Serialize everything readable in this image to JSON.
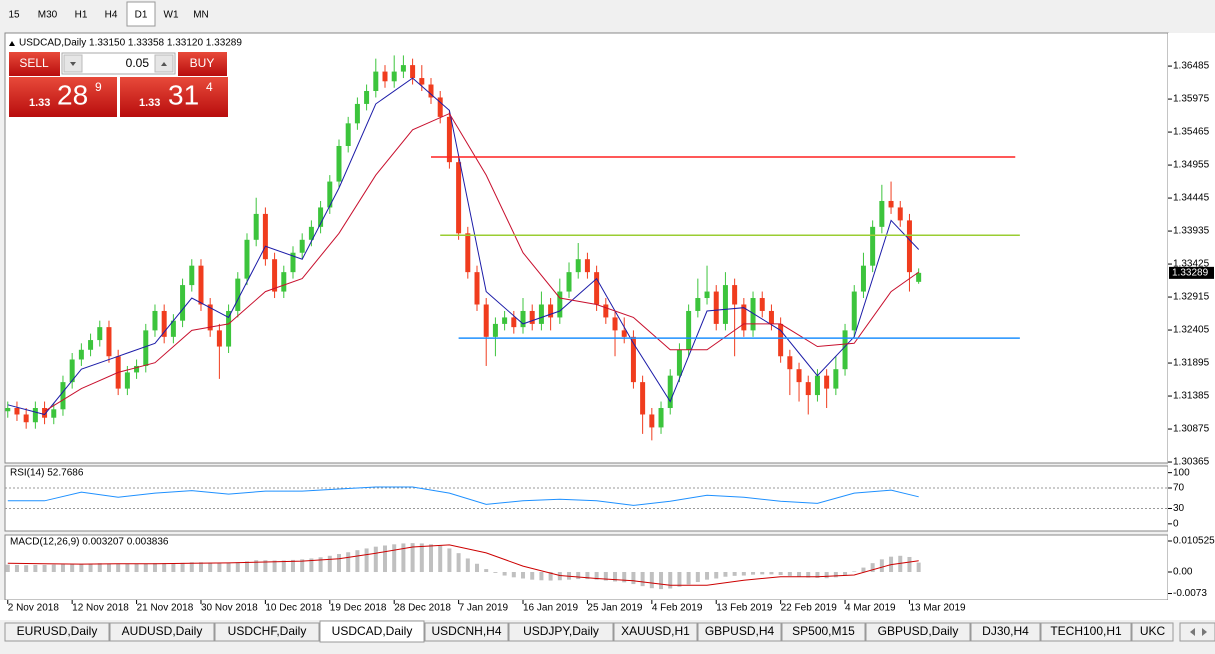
{
  "toolbar": [
    "15",
    "M30",
    "H1",
    "H4",
    "D1",
    "W1",
    "MN"
  ],
  "active_timeframe": 4,
  "trade_panel": {
    "sell": "SELL",
    "lots": "0.05",
    "buy": "BUY",
    "bid": [
      "1.33",
      "28",
      "9"
    ],
    "ask": [
      "1.33",
      "31",
      "4"
    ]
  },
  "tabs": [
    "EURUSD,Daily",
    "AUDUSD,Daily",
    "USDCHF,Daily",
    "USDCAD,Daily",
    "USDCNH,H4",
    "USDJPY,Daily",
    "XAUUSD,H1",
    "GBPUSD,H4",
    "SP500,M15",
    "GBPUSD,Daily",
    "DJ30,H4",
    "TECH100,H1",
    "UKC"
  ],
  "active_tab": 3,
  "chart_data": [
    {
      "type": "candlestick",
      "title": "USDCAD,Daily  1.33150 1.33358 1.33120 1.33289",
      "bull_color": "#3cc43c",
      "bear_color": "#f03c1e",
      "xlim": [
        -0.3,
        126.1
      ],
      "ylim": [
        1.3035,
        1.3695
      ],
      "yticks": [
        1.36485,
        1.35975,
        1.35465,
        1.34955,
        1.34445,
        1.33935,
        1.33425,
        1.32915,
        1.32405,
        1.31895,
        1.31385,
        1.30875,
        1.30365
      ],
      "xticks": [
        {
          "value": 0,
          "label": "2 Nov 2018"
        },
        {
          "value": 7,
          "label": "12 Nov 2018"
        },
        {
          "value": 14,
          "label": "21 Nov 2018"
        },
        {
          "value": 21,
          "label": "30 Nov 2018"
        },
        {
          "value": 28,
          "label": "10 Dec 2018"
        },
        {
          "value": 35,
          "label": "19 Dec 2018"
        },
        {
          "value": 42,
          "label": "28 Dec 2018"
        },
        {
          "value": 49,
          "label": "7 Jan 2019"
        },
        {
          "value": 56,
          "label": "16 Jan 2019"
        },
        {
          "value": 63,
          "label": "25 Jan 2019"
        },
        {
          "value": 70,
          "label": "4 Feb 2019"
        },
        {
          "value": 77,
          "label": "13 Feb 2019"
        },
        {
          "value": 84,
          "label": "22 Feb 2019"
        },
        {
          "value": 91,
          "label": "4 Mar 2019"
        },
        {
          "value": 98,
          "label": "13 Mar 2019"
        }
      ],
      "open": [
        1.3115,
        1.312,
        1.311,
        1.3098,
        1.312,
        1.3105,
        1.3118,
        1.316,
        1.3195,
        1.321,
        1.3225,
        1.3245,
        1.32,
        1.315,
        1.3175,
        1.3185,
        1.324,
        1.327,
        1.323,
        1.3255,
        1.331,
        1.334,
        1.328,
        1.324,
        1.3215,
        1.327,
        1.332,
        1.338,
        1.342,
        1.335,
        1.33,
        1.333,
        1.336,
        1.338,
        1.34,
        1.343,
        1.347,
        1.3525,
        1.356,
        1.359,
        1.361,
        1.364,
        1.3625,
        1.364,
        1.365,
        1.363,
        1.362,
        1.36,
        1.357,
        1.35,
        1.339,
        1.333,
        1.328,
        1.323,
        1.325,
        1.326,
        1.3245,
        1.327,
        1.325,
        1.328,
        1.326,
        1.33,
        1.333,
        1.335,
        1.333,
        1.328,
        1.326,
        1.324,
        1.323,
        1.316,
        1.311,
        1.309,
        1.312,
        1.317,
        1.321,
        1.327,
        1.329,
        1.33,
        1.325,
        1.331,
        1.328,
        1.324,
        1.329,
        1.327,
        1.325,
        1.32,
        1.318,
        1.316,
        1.314,
        1.317,
        1.315,
        1.318,
        1.324,
        1.33,
        1.334,
        1.34,
        1.344,
        1.343,
        1.341,
        1.3315
      ],
      "high": [
        1.313,
        1.313,
        1.312,
        1.313,
        1.313,
        1.3128,
        1.317,
        1.3205,
        1.322,
        1.3235,
        1.3255,
        1.3255,
        1.321,
        1.3185,
        1.3195,
        1.325,
        1.328,
        1.328,
        1.3265,
        1.332,
        1.335,
        1.335,
        1.329,
        1.325,
        1.328,
        1.333,
        1.339,
        1.3445,
        1.343,
        1.336,
        1.334,
        1.337,
        1.339,
        1.341,
        1.344,
        1.348,
        1.3535,
        1.357,
        1.36,
        1.362,
        1.366,
        1.365,
        1.3665,
        1.3665,
        1.366,
        1.365,
        1.363,
        1.361,
        1.358,
        1.351,
        1.34,
        1.334,
        1.329,
        1.326,
        1.327,
        1.327,
        1.329,
        1.328,
        1.33,
        1.329,
        1.332,
        1.3345,
        1.3375,
        1.336,
        1.334,
        1.329,
        1.327,
        1.326,
        1.324,
        1.317,
        1.312,
        1.313,
        1.318,
        1.322,
        1.328,
        1.332,
        1.334,
        1.331,
        1.333,
        1.332,
        1.329,
        1.33,
        1.33,
        1.328,
        1.326,
        1.321,
        1.319,
        1.317,
        1.318,
        1.318,
        1.32,
        1.325,
        1.331,
        1.336,
        1.341,
        1.3465,
        1.347,
        1.344,
        1.342,
        1.33358
      ],
      "low": [
        1.3105,
        1.31,
        1.3088,
        1.3088,
        1.3095,
        1.3095,
        1.3108,
        1.315,
        1.3185,
        1.32,
        1.3215,
        1.319,
        1.314,
        1.314,
        1.3165,
        1.3175,
        1.323,
        1.322,
        1.322,
        1.3245,
        1.33,
        1.327,
        1.323,
        1.3165,
        1.3205,
        1.326,
        1.331,
        1.337,
        1.334,
        1.329,
        1.329,
        1.332,
        1.335,
        1.337,
        1.339,
        1.342,
        1.346,
        1.3515,
        1.355,
        1.358,
        1.36,
        1.3615,
        1.3615,
        1.363,
        1.362,
        1.361,
        1.359,
        1.356,
        1.349,
        1.338,
        1.332,
        1.327,
        1.3185,
        1.32,
        1.324,
        1.3235,
        1.3235,
        1.324,
        1.324,
        1.324,
        1.325,
        1.329,
        1.332,
        1.332,
        1.327,
        1.325,
        1.32,
        1.322,
        1.315,
        1.308,
        1.307,
        1.308,
        1.311,
        1.316,
        1.32,
        1.326,
        1.328,
        1.324,
        1.324,
        1.32,
        1.323,
        1.323,
        1.326,
        1.324,
        1.319,
        1.314,
        1.313,
        1.311,
        1.313,
        1.312,
        1.314,
        1.317,
        1.323,
        1.329,
        1.333,
        1.339,
        1.342,
        1.34,
        1.33,
        1.3312
      ],
      "close": [
        1.312,
        1.311,
        1.3098,
        1.312,
        1.3105,
        1.3118,
        1.316,
        1.3195,
        1.321,
        1.3225,
        1.3245,
        1.32,
        1.315,
        1.3175,
        1.3185,
        1.324,
        1.327,
        1.323,
        1.3255,
        1.331,
        1.334,
        1.328,
        1.324,
        1.3215,
        1.327,
        1.332,
        1.338,
        1.342,
        1.335,
        1.33,
        1.333,
        1.336,
        1.338,
        1.34,
        1.343,
        1.347,
        1.3525,
        1.356,
        1.359,
        1.361,
        1.364,
        1.3625,
        1.364,
        1.365,
        1.363,
        1.362,
        1.36,
        1.357,
        1.35,
        1.339,
        1.333,
        1.328,
        1.323,
        1.325,
        1.326,
        1.3245,
        1.327,
        1.325,
        1.328,
        1.326,
        1.33,
        1.333,
        1.335,
        1.333,
        1.328,
        1.326,
        1.324,
        1.323,
        1.316,
        1.311,
        1.309,
        1.312,
        1.317,
        1.321,
        1.327,
        1.329,
        1.33,
        1.325,
        1.331,
        1.328,
        1.324,
        1.329,
        1.327,
        1.325,
        1.32,
        1.318,
        1.316,
        1.314,
        1.317,
        1.315,
        1.318,
        1.324,
        1.33,
        1.334,
        1.34,
        1.344,
        1.343,
        1.341,
        1.333,
        1.33289
      ],
      "overlays": [
        {
          "color": "#1c1ca8",
          "x": [
            0,
            4,
            8,
            12,
            16,
            20,
            24,
            28,
            32,
            36,
            40,
            44,
            48,
            52,
            56,
            60,
            64,
            68,
            72,
            76,
            80,
            84,
            88,
            92,
            96,
            99
          ],
          "values": [
            1.3125,
            1.311,
            1.318,
            1.32,
            1.322,
            1.329,
            1.326,
            1.337,
            1.335,
            1.346,
            1.359,
            1.363,
            1.358,
            1.33,
            1.325,
            1.327,
            1.332,
            1.322,
            1.313,
            1.327,
            1.3275,
            1.324,
            1.317,
            1.323,
            1.341,
            1.3365
          ]
        },
        {
          "color": "#c8102e",
          "x": [
            4,
            8,
            12,
            16,
            20,
            24,
            28,
            32,
            36,
            40,
            44,
            48,
            52,
            56,
            60,
            64,
            68,
            72,
            76,
            80,
            84,
            88,
            92,
            96,
            99
          ],
          "values": [
            1.3115,
            1.315,
            1.3175,
            1.319,
            1.324,
            1.325,
            1.33,
            1.332,
            1.339,
            1.348,
            1.355,
            1.3575,
            1.348,
            1.336,
            1.329,
            1.328,
            1.326,
            1.321,
            1.321,
            1.325,
            1.325,
            1.3215,
            1.322,
            1.33,
            1.333
          ]
        }
      ],
      "hlines": [
        {
          "value": 1.3508,
          "color": "#ff2020",
          "x": [
            46,
            109.5
          ]
        },
        {
          "value": 1.3387,
          "color": "#9acd32",
          "x": [
            47,
            110
          ]
        },
        {
          "value": 1.3228,
          "color": "#1e90ff",
          "x": [
            49,
            110
          ]
        }
      ]
    },
    {
      "type": "line",
      "title": "RSI(14) 52.7686",
      "color": "#1e90ff",
      "xlim": [
        -0.3,
        126.1
      ],
      "ylim": [
        -14,
        113
      ],
      "yticks": [
        100,
        70,
        30,
        0
      ],
      "levels": [
        70,
        30
      ],
      "x": [
        0,
        4,
        8,
        12,
        16,
        20,
        24,
        28,
        32,
        36,
        40,
        44,
        48,
        52,
        56,
        60,
        64,
        68,
        72,
        76,
        80,
        84,
        88,
        92,
        96,
        99
      ],
      "values": [
        45,
        45,
        62,
        52,
        60,
        65,
        58,
        64,
        64,
        68,
        72,
        72,
        60,
        38,
        45,
        48,
        45,
        36,
        44,
        56,
        52,
        44,
        40,
        60,
        66,
        52.7686
      ]
    },
    {
      "type": "macd",
      "title": "MACD(12,26,9) 0.003207 0.003836",
      "color": "#c0c0c0",
      "xlim": [
        -0.3,
        126.1
      ],
      "ylim": [
        -0.0095,
        0.01256
      ],
      "yticks": [
        0.010525,
        {
          "value": 0,
          "label": "0.00"
        },
        -0.0073
      ],
      "values": [
        0.0025,
        0.0024,
        0.0023,
        0.0024,
        0.0024,
        0.0025,
        0.0026,
        0.0027,
        0.0028,
        0.0029,
        0.003,
        0.0029,
        0.0027,
        0.0027,
        0.0027,
        0.0028,
        0.003,
        0.003,
        0.003,
        0.0031,
        0.0033,
        0.0033,
        0.0032,
        0.0031,
        0.0031,
        0.0033,
        0.0036,
        0.004,
        0.004,
        0.0039,
        0.0039,
        0.0041,
        0.0043,
        0.0046,
        0.005,
        0.0055,
        0.0061,
        0.0067,
        0.0074,
        0.008,
        0.0086,
        0.009,
        0.0094,
        0.0097,
        0.0098,
        0.0097,
        0.0094,
        0.0089,
        0.008,
        0.0064,
        0.0046,
        0.0028,
        0.001,
        -0.0003,
        -0.0012,
        -0.0018,
        -0.0022,
        -0.0026,
        -0.0028,
        -0.0029,
        -0.0028,
        -0.0026,
        -0.0024,
        -0.0024,
        -0.0026,
        -0.0029,
        -0.0032,
        -0.0035,
        -0.0041,
        -0.0048,
        -0.0055,
        -0.0058,
        -0.0056,
        -0.005,
        -0.0042,
        -0.0034,
        -0.0026,
        -0.0022,
        -0.0016,
        -0.0013,
        -0.0012,
        -0.0009,
        -0.0008,
        -0.0008,
        -0.001,
        -0.0013,
        -0.0016,
        -0.0019,
        -0.002,
        -0.0021,
        -0.0018,
        -0.001,
        0.0002,
        0.0015,
        0.003,
        0.0043,
        0.0052,
        0.0055,
        0.0051,
        0.0032
      ],
      "signal": {
        "color": "#cc0000",
        "x": [
          0,
          4,
          8,
          12,
          16,
          20,
          24,
          28,
          32,
          36,
          40,
          44,
          48,
          52,
          56,
          60,
          64,
          68,
          72,
          76,
          80,
          84,
          88,
          92,
          96,
          99
        ],
        "values": [
          0.003,
          0.0028,
          0.0027,
          0.0028,
          0.0028,
          0.003,
          0.0031,
          0.0034,
          0.0037,
          0.0045,
          0.0064,
          0.0085,
          0.0092,
          0.0065,
          0.002,
          -0.0012,
          -0.0022,
          -0.003,
          -0.0045,
          -0.0045,
          -0.0028,
          -0.0016,
          -0.0016,
          -0.001,
          0.0025,
          0.0038
        ]
      }
    }
  ]
}
